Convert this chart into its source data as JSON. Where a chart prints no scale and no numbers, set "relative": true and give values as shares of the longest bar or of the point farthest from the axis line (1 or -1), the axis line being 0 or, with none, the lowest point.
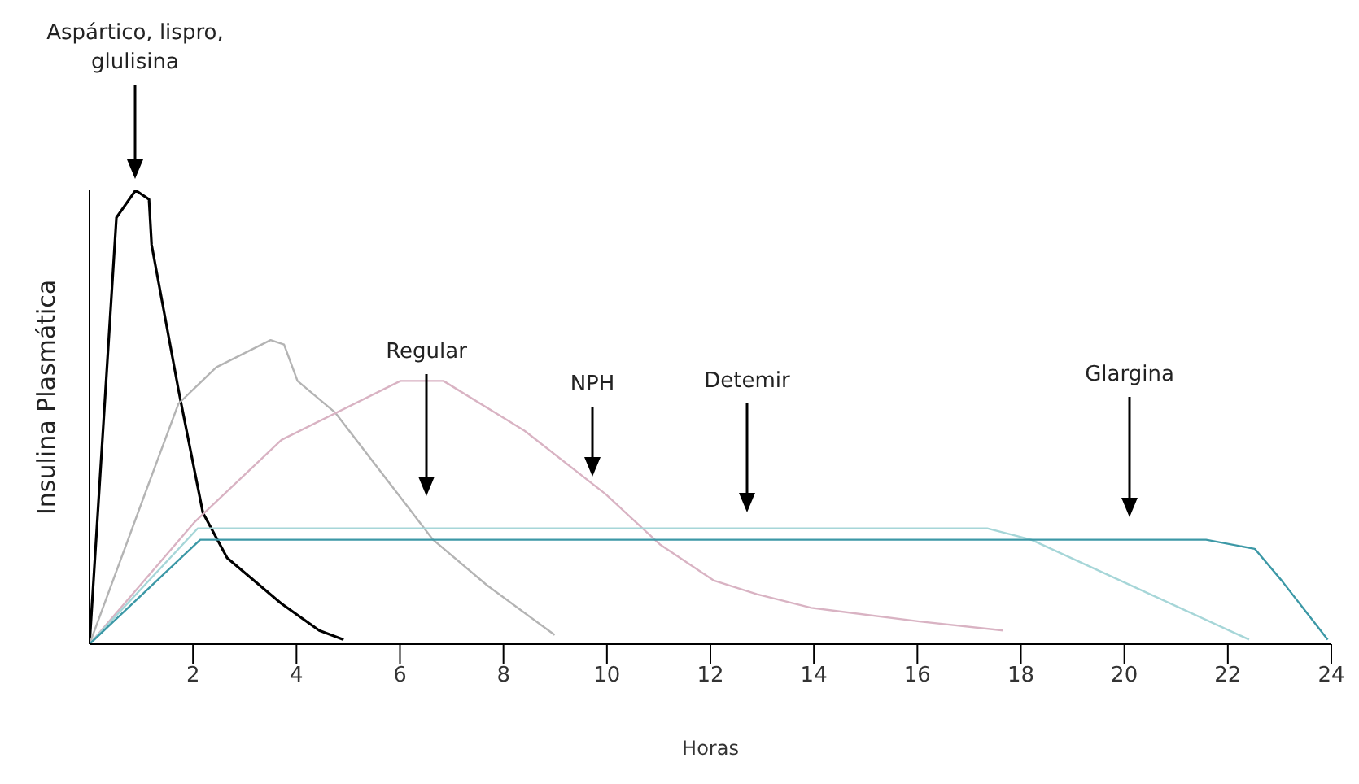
{
  "chart_data": {
    "type": "line",
    "relative": true,
    "xlabel": "Horas",
    "ylabel": "Insulina Plasmática",
    "xlim": [
      0,
      24
    ],
    "xticks": [
      2,
      4,
      6,
      8,
      10,
      12,
      14,
      16,
      18,
      20,
      22,
      24
    ],
    "grid": false,
    "legend": false,
    "marker": "none",
    "line_style": "solid",
    "series": [
      {
        "color": "#000000",
        "x": [
          0,
          0.52,
          0.89,
          1.15,
          1.2,
          1.72,
          2.19,
          2.66,
          3.7,
          4.44,
          4.91
        ],
        "values": [
          0,
          0.94,
          1,
          0.98,
          0.88,
          0.56,
          0.29,
          0.19,
          0.09,
          0.03,
          0.01
        ]
      },
      {
        "color": "#b4b4b4",
        "x": [
          0,
          1.1,
          1.72,
          2.45,
          3.5,
          3.76,
          4.02,
          4.75,
          6.64,
          7.68,
          8.99
        ],
        "values": [
          0,
          0.34,
          0.53,
          0.61,
          0.67,
          0.66,
          0.58,
          0.51,
          0.23,
          0.13,
          0.02
        ]
      },
      {
        "color": "#d9b3c3",
        "x": [
          0,
          2.04,
          3.71,
          6.01,
          6.84,
          8.41,
          9.98,
          11.02,
          12.07,
          12.9,
          13.95,
          16.04,
          17.66
        ],
        "values": [
          0,
          0.27,
          0.45,
          0.58,
          0.58,
          0.47,
          0.33,
          0.22,
          0.14,
          0.11,
          0.08,
          0.05,
          0.03
        ]
      },
      {
        "color": "#a6d6d8",
        "x": [
          0,
          2.09,
          17.35,
          18.2,
          22.41
        ],
        "values": [
          0,
          0.255,
          0.255,
          0.23,
          0.01
        ]
      },
      {
        "color": "#3c98a6",
        "x": [
          0,
          2.14,
          21.58,
          22.52,
          23.04,
          23.93
        ],
        "values": [
          0,
          0.23,
          0.23,
          0.21,
          0.14,
          0.01
        ]
      }
    ],
    "annotations": [
      "Aspártico, lispro, glulisina",
      "Regular",
      "NPH",
      "Detemir",
      "Glargina"
    ]
  }
}
